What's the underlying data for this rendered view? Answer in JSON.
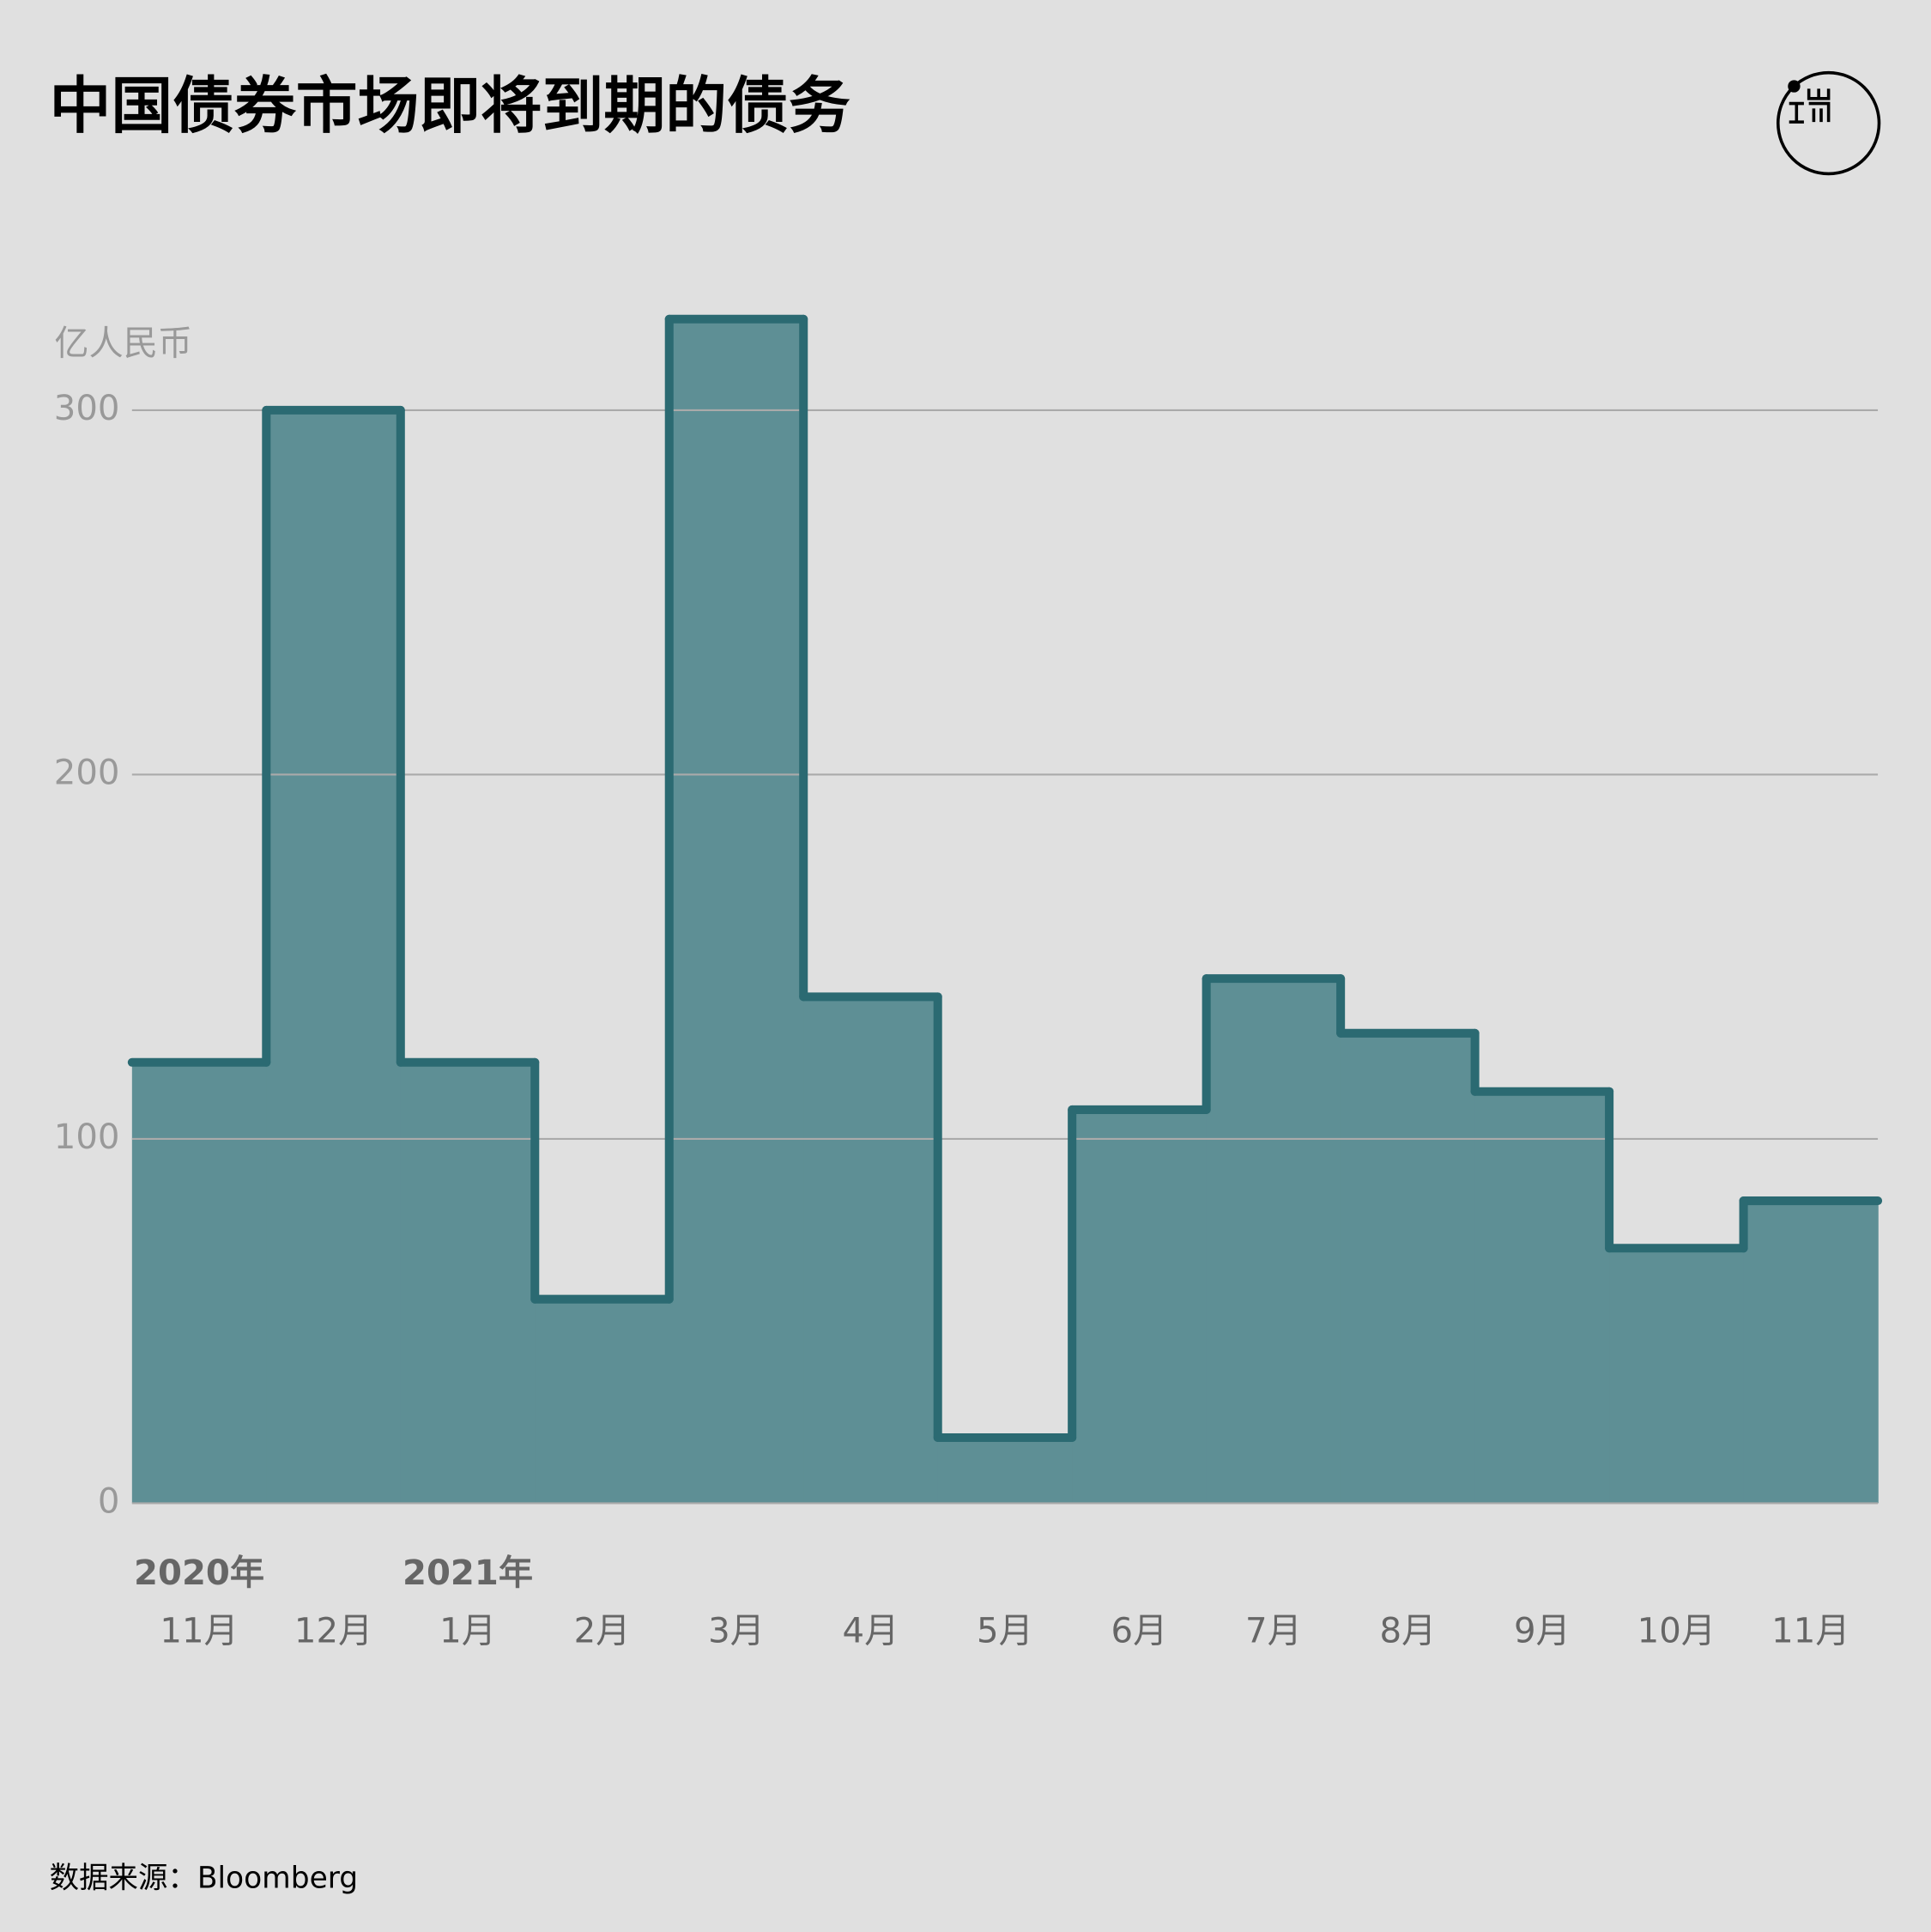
{
  "chart_data": {
    "type": "step-area",
    "title": "中国债券市场即将到期的债务",
    "y_label": "亿人民币",
    "source": "数据来源：Bloomberg",
    "categories": [
      "11月",
      "12月",
      "1月",
      "2月",
      "3月",
      "4月",
      "5月",
      "6月",
      "7月",
      "8月",
      "9月",
      "10月",
      "11月"
    ],
    "years": [
      "2020年",
      null,
      "2021年",
      null,
      null,
      null,
      null,
      null,
      null,
      null,
      null,
      null,
      null
    ],
    "values": [
      121,
      300,
      121,
      56,
      325,
      139,
      18,
      108,
      144,
      129,
      113,
      70,
      83
    ],
    "color": "#5e8f95",
    "line_color": "#2b6a72",
    "ylim": [
      0,
      330
    ],
    "yticks": [
      0,
      100,
      200,
      300
    ],
    "grid": true
  }
}
